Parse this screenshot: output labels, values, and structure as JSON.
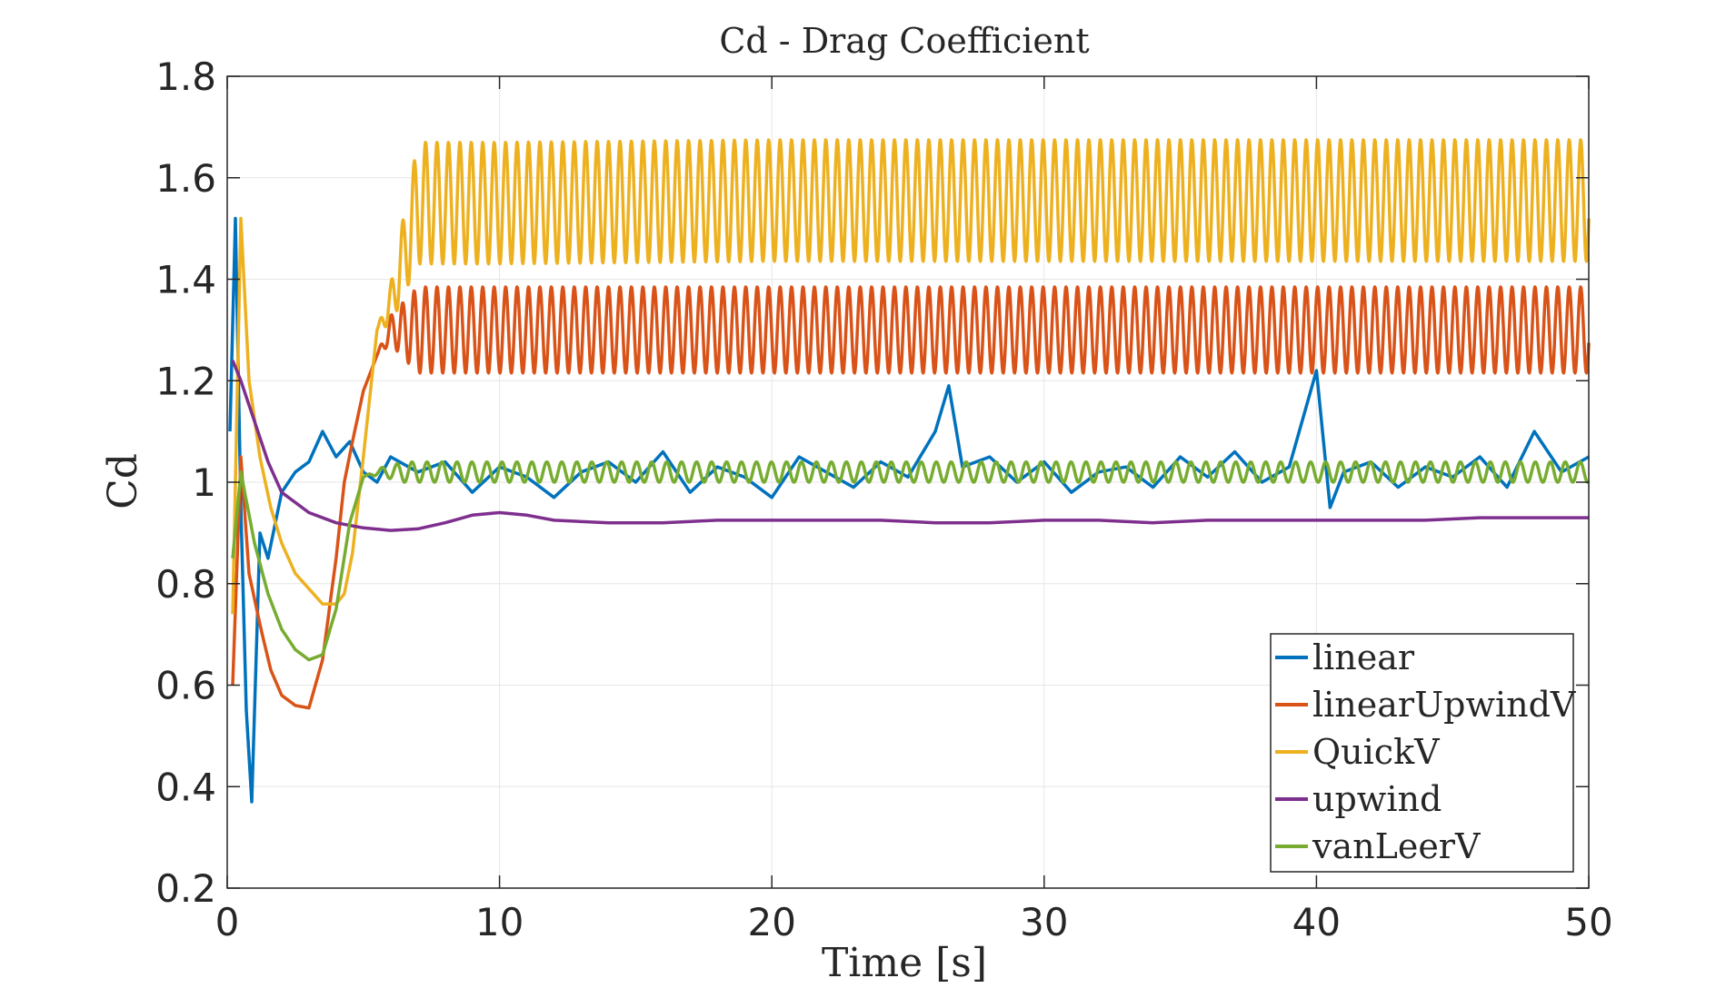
{
  "chart_data": {
    "type": "line",
    "title": "Cd - Drag Coefficient",
    "xlabel": "Time [s]",
    "ylabel": "Cd",
    "xlim": [
      0,
      50
    ],
    "ylim": [
      0.2,
      1.8
    ],
    "xticks": [
      0,
      10,
      20,
      30,
      40,
      50
    ],
    "xtick_labels": [
      "0",
      "10",
      "20",
      "30",
      "40",
      "50"
    ],
    "yticks": [
      0.2,
      0.4,
      0.6,
      0.8,
      1.0,
      1.2,
      1.4,
      1.6,
      1.8
    ],
    "ytick_labels": [
      "0.2",
      "0.4",
      "0.6",
      "0.8",
      "1",
      "1.2",
      "1.4",
      "1.6",
      "1.8"
    ],
    "grid": true,
    "legend_position": "bottom-right",
    "series": [
      {
        "name": "linear",
        "color": "#0072BD",
        "x": [
          0.1,
          0.3,
          0.5,
          0.7,
          0.9,
          1.2,
          1.5,
          2.0,
          2.5,
          3.0,
          3.5,
          4.0,
          4.5,
          5.0,
          5.5,
          6,
          7,
          8,
          9,
          10,
          11,
          12,
          13,
          14,
          15,
          16,
          17,
          18,
          19,
          20,
          21,
          22,
          23,
          24,
          25,
          26,
          26.5,
          27,
          28,
          29,
          30,
          31,
          32,
          33,
          34,
          35,
          36,
          37,
          38,
          39,
          40,
          40.5,
          41,
          42,
          43,
          44,
          45,
          46,
          47,
          48,
          49,
          50
        ],
        "y": [
          1.1,
          1.52,
          0.95,
          0.55,
          0.37,
          0.9,
          0.85,
          0.98,
          1.02,
          1.04,
          1.1,
          1.05,
          1.08,
          1.02,
          1.0,
          1.05,
          1.02,
          1.04,
          0.98,
          1.03,
          1.01,
          0.97,
          1.02,
          1.04,
          1.0,
          1.06,
          0.98,
          1.03,
          1.01,
          0.97,
          1.05,
          1.02,
          0.99,
          1.04,
          1.01,
          1.1,
          1.19,
          1.03,
          1.05,
          1.0,
          1.04,
          0.98,
          1.02,
          1.03,
          0.99,
          1.05,
          1.01,
          1.06,
          1.0,
          1.03,
          1.22,
          0.95,
          1.02,
          1.04,
          0.99,
          1.03,
          1.01,
          1.05,
          0.99,
          1.1,
          1.02,
          1.05
        ]
      },
      {
        "name": "linearUpwindV",
        "color": "#D95319",
        "x": [
          0.2,
          0.5,
          0.8,
          1.2,
          1.6,
          2.0,
          2.5,
          3.0,
          3.5,
          4.0,
          4.3,
          4.6,
          5.0,
          5.5,
          6.0,
          7.0,
          10,
          20,
          30,
          40,
          50
        ],
        "y": [
          0.6,
          1.05,
          0.82,
          0.72,
          0.63,
          0.58,
          0.56,
          0.555,
          0.65,
          0.85,
          1.0,
          1.08,
          1.18,
          1.25,
          1.3,
          1.3,
          1.3,
          1.3,
          1.3,
          1.3,
          1.3
        ],
        "oscillation": {
          "start": 5.5,
          "amplitude": 0.085,
          "period": 0.42
        }
      },
      {
        "name": "QuickV",
        "color": "#EDB120",
        "x": [
          0.2,
          0.5,
          0.8,
          1.2,
          1.6,
          2.0,
          2.5,
          3.0,
          3.5,
          4.0,
          4.3,
          4.6,
          5.0,
          5.5,
          6.0,
          6.5,
          7.0,
          10,
          20,
          30,
          40,
          50
        ],
        "y": [
          0.74,
          1.52,
          1.2,
          1.05,
          0.95,
          0.88,
          0.82,
          0.79,
          0.76,
          0.76,
          0.78,
          0.86,
          1.05,
          1.3,
          1.35,
          1.45,
          1.55,
          1.55,
          1.555,
          1.555,
          1.555,
          1.555
        ],
        "oscillation": {
          "start": 5.5,
          "amplitude": 0.12,
          "period": 0.42
        }
      },
      {
        "name": "upwind",
        "color": "#7E2F8E",
        "x": [
          0.2,
          0.5,
          1.0,
          1.5,
          2.0,
          3.0,
          4.0,
          5.0,
          6.0,
          7.0,
          8.0,
          9.0,
          10,
          11,
          12,
          14,
          16,
          18,
          20,
          22,
          24,
          26,
          28,
          30,
          32,
          34,
          36,
          38,
          40,
          42,
          44,
          46,
          48,
          50
        ],
        "y": [
          1.24,
          1.2,
          1.12,
          1.04,
          0.98,
          0.94,
          0.92,
          0.91,
          0.905,
          0.908,
          0.92,
          0.935,
          0.94,
          0.935,
          0.925,
          0.92,
          0.92,
          0.925,
          0.925,
          0.925,
          0.925,
          0.92,
          0.92,
          0.925,
          0.925,
          0.92,
          0.925,
          0.925,
          0.925,
          0.925,
          0.925,
          0.93,
          0.93,
          0.93
        ]
      },
      {
        "name": "vanLeerV",
        "color": "#77AC30",
        "x": [
          0.2,
          0.5,
          1.0,
          1.5,
          2.0,
          2.5,
          3.0,
          3.5,
          4.0,
          4.5,
          5.0,
          5.5,
          6.0,
          10,
          20,
          30,
          40,
          50
        ],
        "y": [
          0.85,
          1.02,
          0.88,
          0.78,
          0.71,
          0.67,
          0.65,
          0.66,
          0.75,
          0.92,
          1.01,
          1.02,
          1.02,
          1.02,
          1.02,
          1.02,
          1.02,
          1.02
        ],
        "oscillation": {
          "start": 5.0,
          "amplitude": 0.02,
          "period": 0.55
        }
      }
    ]
  }
}
